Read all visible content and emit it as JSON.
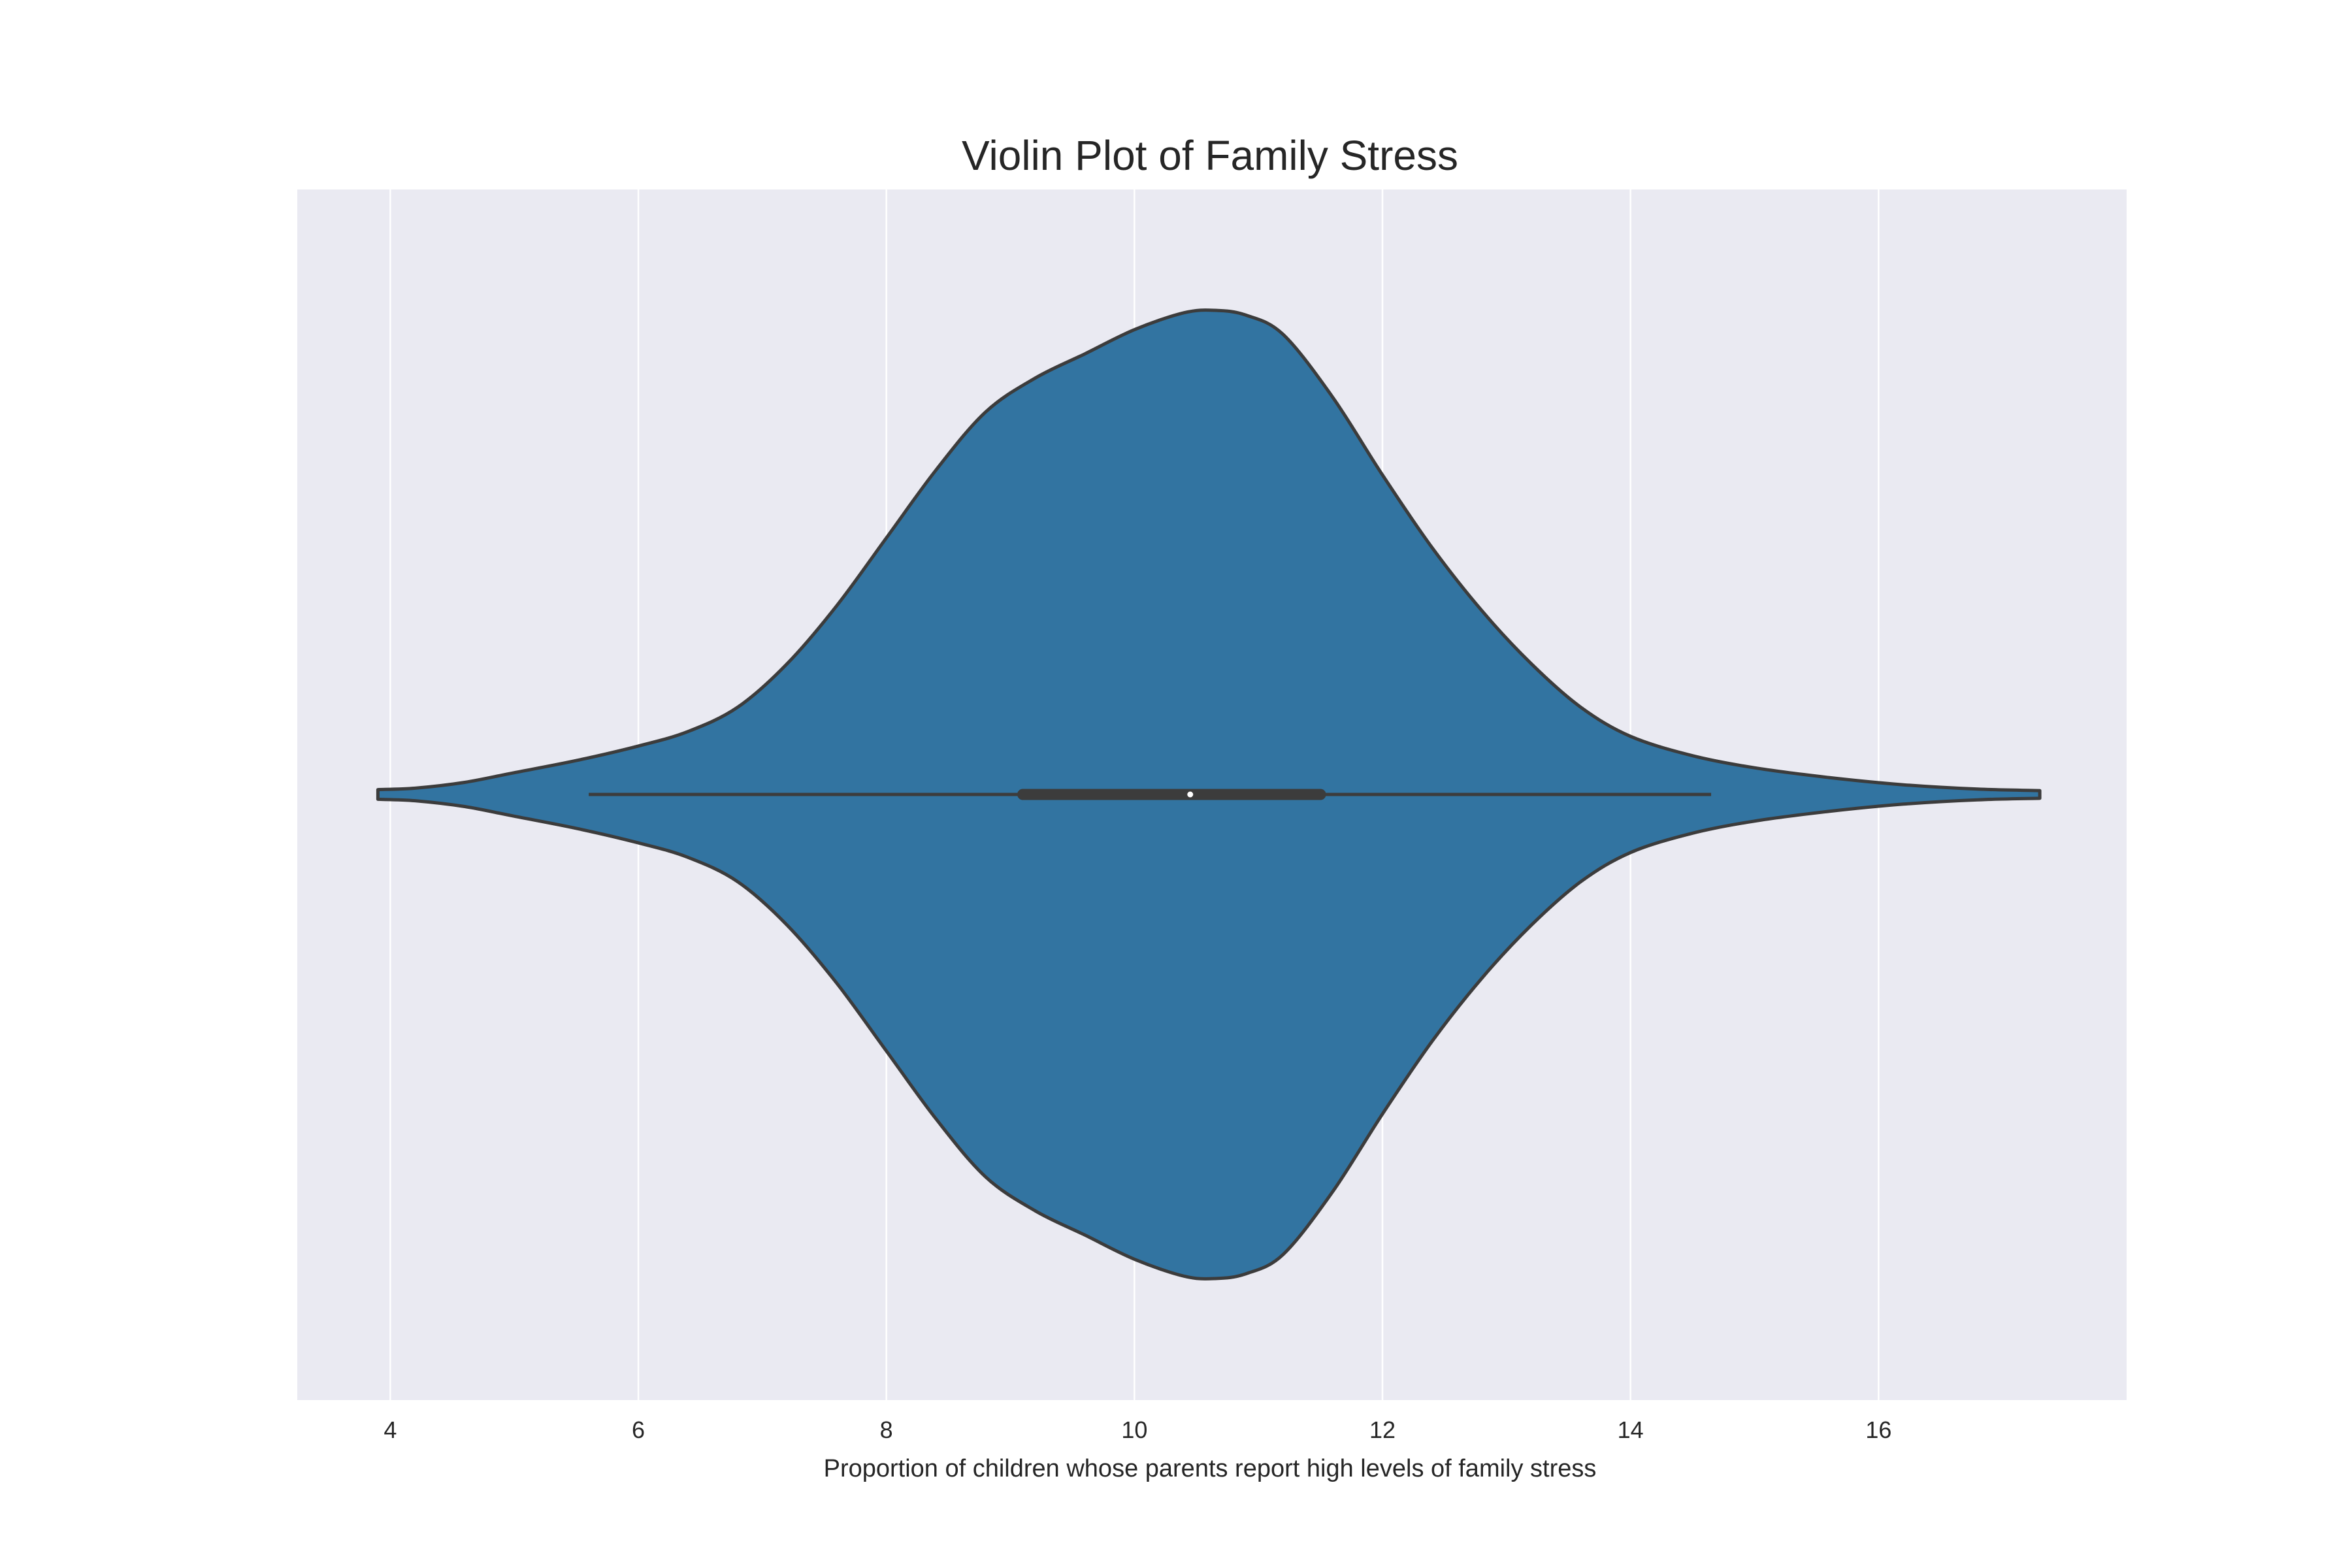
{
  "chart_data": {
    "type": "violin",
    "title": "Violin Plot of Family Stress",
    "xlabel": "Proportion of children whose parents report high levels of family stress",
    "ylabel": "",
    "xlim": [
      3.25,
      18.0
    ],
    "xticks": [
      4,
      6,
      8,
      10,
      12,
      14,
      16
    ],
    "xtick_labels": [
      "4",
      "6",
      "8",
      "10",
      "12",
      "14",
      "16"
    ],
    "grid": true,
    "grid_axis": "x",
    "colors": {
      "background": "#ffffff",
      "plot_background": "#eaeaf2",
      "grid": "#ffffff",
      "violin_fill": "#3274a1",
      "outline": "#3c3c3c",
      "median_marker": "#ffffff",
      "text": "#262626"
    },
    "violin": {
      "density_profile": [
        [
          3.9,
          0.01
        ],
        [
          4.2,
          0.013
        ],
        [
          4.6,
          0.025
        ],
        [
          5.0,
          0.045
        ],
        [
          5.5,
          0.07
        ],
        [
          6.0,
          0.1
        ],
        [
          6.4,
          0.13
        ],
        [
          6.8,
          0.18
        ],
        [
          7.2,
          0.27
        ],
        [
          7.6,
          0.39
        ],
        [
          8.0,
          0.53
        ],
        [
          8.4,
          0.67
        ],
        [
          8.8,
          0.79
        ],
        [
          9.2,
          0.86
        ],
        [
          9.6,
          0.91
        ],
        [
          10.0,
          0.96
        ],
        [
          10.4,
          0.995
        ],
        [
          10.65,
          1.0
        ],
        [
          10.9,
          0.99
        ],
        [
          11.2,
          0.95
        ],
        [
          11.6,
          0.82
        ],
        [
          12.0,
          0.66
        ],
        [
          12.4,
          0.51
        ],
        [
          12.8,
          0.38
        ],
        [
          13.2,
          0.27
        ],
        [
          13.6,
          0.18
        ],
        [
          14.0,
          0.12
        ],
        [
          14.5,
          0.08
        ],
        [
          15.0,
          0.055
        ],
        [
          15.6,
          0.035
        ],
        [
          16.2,
          0.02
        ],
        [
          16.8,
          0.011
        ],
        [
          17.3,
          0.008
        ]
      ],
      "whisker_low": 5.6,
      "q1": 9.1,
      "median": 10.45,
      "q3": 11.5,
      "whisker_high": 14.65
    }
  }
}
